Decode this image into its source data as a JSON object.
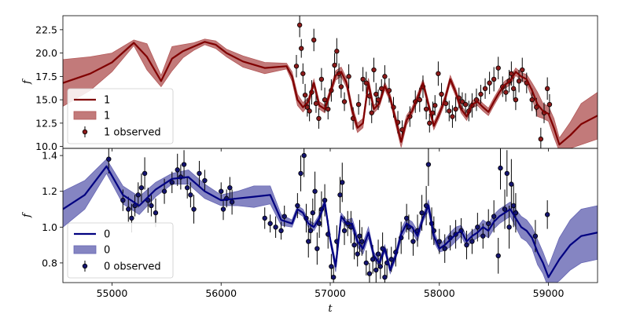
{
  "chart_data": [
    {
      "type": "line",
      "xlabel": "",
      "ylabel": "f",
      "xlim": [
        54550,
        59450
      ],
      "ylim": [
        9.8,
        24.0
      ],
      "yticks": [
        "10.0",
        "12.5",
        "15.0",
        "17.5",
        "20.0",
        "22.5"
      ],
      "ytick_values": [
        10.0,
        12.5,
        15.0,
        17.5,
        20.0,
        22.5
      ],
      "colors": {
        "line": "#800000",
        "band": "#b35959",
        "marker": "#8b1a1a"
      },
      "legend": {
        "placement": "lower-left",
        "entries": [
          "1",
          "1",
          "1 observed"
        ]
      },
      "series": [
        {
          "name": "1",
          "kind": "mean",
          "x": [
            54550,
            54800,
            55000,
            55200,
            55320,
            55450,
            55550,
            55650,
            55750,
            55850,
            55950,
            56050,
            56200,
            56400,
            56600,
            56650,
            56700,
            56750,
            56800,
            56850,
            56900,
            56950,
            57000,
            57050,
            57100,
            57150,
            57200,
            57250,
            57300,
            57350,
            57400,
            57450,
            57500,
            57550,
            57600,
            57650,
            57700,
            57750,
            57800,
            57850,
            57900,
            57950,
            58000,
            58050,
            58100,
            58150,
            58200,
            58250,
            58300,
            58350,
            58400,
            58450,
            58500,
            58550,
            58600,
            58650,
            58700,
            58750,
            58800,
            58850,
            58900,
            58950,
            59000,
            59050,
            59100,
            59200,
            59300,
            59450
          ],
          "y": [
            16.8,
            17.8,
            19.0,
            21.1,
            19.6,
            17.0,
            19.4,
            20.2,
            20.7,
            21.2,
            20.9,
            20.0,
            19.1,
            18.4,
            18.6,
            17.5,
            15.0,
            14.2,
            14.8,
            16.8,
            14.4,
            14.0,
            15.8,
            17.6,
            18.0,
            16.8,
            13.9,
            12.0,
            12.5,
            16.8,
            14.0,
            14.6,
            16.5,
            15.2,
            12.8,
            10.5,
            12.8,
            13.8,
            15.2,
            16.8,
            14.5,
            12.2,
            13.5,
            15.0,
            17.2,
            15.8,
            14.0,
            13.2,
            14.5,
            14.8,
            14.2,
            13.7,
            14.8,
            15.8,
            16.6,
            17.0,
            18.0,
            17.5,
            17.2,
            16.0,
            14.5,
            13.8,
            13.5,
            12.0,
            10.2,
            11.2,
            12.4,
            13.3
          ]
        },
        {
          "name": "1",
          "kind": "band",
          "half_width": [
            2.5,
            1.8,
            1.0,
            0.3,
            1.4,
            0.6,
            1.3,
            0.7,
            0.4,
            0.3,
            0.4,
            0.4,
            0.6,
            0.6,
            0.3,
            0.5,
            0.6,
            0.5,
            0.4,
            0.4,
            0.4,
            0.4,
            0.4,
            0.5,
            0.5,
            0.5,
            0.5,
            0.5,
            0.5,
            0.5,
            0.4,
            0.4,
            0.4,
            0.4,
            0.5,
            0.6,
            0.5,
            0.4,
            0.4,
            0.4,
            0.4,
            0.4,
            0.4,
            0.4,
            0.4,
            0.4,
            0.4,
            0.4,
            0.4,
            0.4,
            0.4,
            0.4,
            0.4,
            0.4,
            0.4,
            0.4,
            0.4,
            0.4,
            0.5,
            0.8,
            1.3,
            0.8,
            0.8,
            1.0,
            0.7,
            1.4,
            2.2,
            2.5
          ]
        },
        {
          "name": "1 observed",
          "kind": "points",
          "x": [
            56690,
            56720,
            56735,
            56750,
            56770,
            56790,
            56810,
            56830,
            56850,
            56870,
            56895,
            56920,
            56950,
            56980,
            57010,
            57040,
            57060,
            57080,
            57100,
            57130,
            57170,
            57210,
            57260,
            57300,
            57330,
            57360,
            57380,
            57400,
            57420,
            57440,
            57470,
            57500,
            57540,
            57580,
            57620,
            57660,
            57730,
            57780,
            57820,
            57850,
            57880,
            57910,
            57940,
            57960,
            57990,
            58020,
            58060,
            58090,
            58120,
            58150,
            58180,
            58210,
            58240,
            58270,
            58300,
            58340,
            58380,
            58420,
            58460,
            58500,
            58540,
            58580,
            58610,
            58640,
            58660,
            58680,
            58700,
            58730,
            58760,
            58800,
            58850,
            58890,
            58930,
            58960,
            58990,
            59010
          ],
          "y": [
            18.6,
            23.0,
            20.5,
            17.8,
            15.5,
            14.2,
            13.8,
            15.8,
            21.4,
            14.6,
            13.0,
            17.2,
            15.0,
            14.0,
            16.0,
            18.7,
            20.2,
            17.8,
            16.4,
            14.8,
            17.5,
            13.0,
            14.5,
            17.2,
            16.8,
            15.4,
            13.6,
            18.2,
            15.6,
            15.0,
            16.2,
            17.5,
            16.0,
            14.2,
            12.6,
            11.8,
            13.2,
            14.8,
            15.0,
            16.4,
            14.0,
            12.5,
            13.6,
            14.4,
            17.8,
            15.6,
            14.6,
            13.8,
            13.2,
            14.0,
            15.2,
            14.8,
            14.5,
            13.8,
            14.4,
            15.0,
            15.6,
            16.2,
            16.8,
            17.2,
            18.4,
            16.4,
            15.8,
            17.0,
            17.8,
            16.2,
            15.0,
            17.0,
            18.2,
            16.8,
            15.0,
            14.2,
            10.8,
            13.6,
            16.2,
            14.5
          ],
          "err": [
            1.2,
            1.3,
            1.0,
            1.1,
            1.2,
            1.0,
            1.1,
            1.3,
            1.2,
            1.0,
            1.1,
            1.2,
            1.3,
            1.1,
            1.2,
            1.3,
            1.4,
            1.1,
            1.2,
            1.0,
            1.3,
            1.2,
            1.1,
            1.3,
            1.2,
            1.0,
            1.1,
            1.3,
            1.2,
            1.1,
            1.0,
            1.2,
            1.3,
            1.1,
            1.2,
            1.0,
            1.1,
            1.2,
            1.3,
            1.2,
            1.1,
            1.0,
            1.2,
            1.1,
            1.3,
            1.2,
            1.0,
            1.1,
            1.2,
            1.3,
            1.1,
            1.0,
            1.2,
            1.1,
            1.3,
            1.2,
            1.0,
            1.1,
            1.2,
            1.3,
            1.2,
            1.1,
            1.0,
            1.2,
            1.3,
            1.2,
            1.1,
            1.2,
            1.3,
            1.1,
            1.2,
            1.0,
            1.2,
            1.1,
            1.2,
            1.1
          ]
        }
      ]
    },
    {
      "type": "line",
      "xlabel": "t",
      "ylabel": "f",
      "xlim": [
        54550,
        59450
      ],
      "ylim": [
        0.69,
        1.44
      ],
      "xticks": [
        "55000",
        "56000",
        "57000",
        "58000",
        "59000"
      ],
      "xtick_values": [
        55000,
        56000,
        57000,
        58000,
        59000
      ],
      "yticks": [
        "0.8",
        "1.0",
        "1.2",
        "1.4"
      ],
      "ytick_values": [
        0.8,
        1.0,
        1.2,
        1.4
      ],
      "colors": {
        "line": "#000080",
        "band": "#6666b3",
        "marker": "#14146e"
      },
      "legend": {
        "placement": "lower-left",
        "entries": [
          "0",
          "0",
          "0 observed"
        ]
      },
      "series": [
        {
          "name": "0",
          "kind": "mean",
          "x": [
            54550,
            54750,
            54950,
            55100,
            55250,
            55400,
            55550,
            55700,
            55850,
            56000,
            56150,
            56300,
            56450,
            56550,
            56650,
            56700,
            56750,
            56800,
            56850,
            56900,
            56950,
            57000,
            57050,
            57100,
            57150,
            57200,
            57250,
            57300,
            57350,
            57400,
            57450,
            57500,
            57550,
            57600,
            57650,
            57700,
            57750,
            57800,
            57850,
            57900,
            57950,
            58000,
            58050,
            58100,
            58150,
            58200,
            58250,
            58300,
            58350,
            58400,
            58450,
            58500,
            58550,
            58600,
            58650,
            58700,
            58750,
            58800,
            58850,
            58900,
            58950,
            59000,
            59100,
            59200,
            59300,
            59450
          ],
          "y": [
            1.1,
            1.18,
            1.34,
            1.18,
            1.12,
            1.21,
            1.27,
            1.28,
            1.2,
            1.15,
            1.16,
            1.17,
            1.18,
            1.04,
            1.02,
            1.1,
            1.08,
            1.02,
            1.0,
            1.05,
            1.14,
            0.93,
            0.78,
            1.06,
            1.02,
            1.02,
            0.92,
            0.88,
            0.97,
            0.84,
            0.8,
            0.88,
            0.76,
            0.84,
            0.96,
            1.02,
            1.0,
            0.95,
            1.05,
            1.12,
            0.95,
            0.88,
            0.9,
            0.93,
            0.96,
            0.98,
            0.92,
            0.95,
            0.97,
            1.0,
            0.98,
            1.03,
            1.06,
            1.08,
            1.1,
            1.05,
            1.0,
            0.98,
            0.94,
            0.86,
            0.8,
            0.72,
            0.82,
            0.9,
            0.95,
            0.97
          ]
        },
        {
          "name": "0",
          "kind": "band",
          "half_width": [
            0.1,
            0.08,
            0.04,
            0.05,
            0.05,
            0.04,
            0.03,
            0.04,
            0.04,
            0.03,
            0.04,
            0.06,
            0.05,
            0.03,
            0.02,
            0.02,
            0.02,
            0.02,
            0.02,
            0.02,
            0.02,
            0.02,
            0.03,
            0.02,
            0.02,
            0.03,
            0.03,
            0.03,
            0.03,
            0.02,
            0.02,
            0.02,
            0.02,
            0.02,
            0.03,
            0.03,
            0.03,
            0.03,
            0.02,
            0.03,
            0.03,
            0.02,
            0.03,
            0.04,
            0.04,
            0.03,
            0.03,
            0.03,
            0.03,
            0.04,
            0.04,
            0.04,
            0.04,
            0.04,
            0.04,
            0.05,
            0.06,
            0.06,
            0.06,
            0.07,
            0.06,
            0.06,
            0.12,
            0.14,
            0.15,
            0.15
          ]
        },
        {
          "name": "0 observed",
          "kind": "points",
          "x": [
            54970,
            55100,
            55150,
            55180,
            55210,
            55240,
            55270,
            55300,
            55330,
            55360,
            55400,
            55480,
            55550,
            55600,
            55630,
            55660,
            55690,
            55720,
            55750,
            55800,
            55850,
            56000,
            56020,
            56050,
            56080,
            56100,
            56400,
            56450,
            56500,
            56550,
            56580,
            56700,
            56730,
            56760,
            56780,
            56800,
            56820,
            56840,
            56860,
            56880,
            56900,
            56920,
            56950,
            56980,
            57010,
            57030,
            57060,
            57090,
            57110,
            57130,
            57160,
            57190,
            57220,
            57250,
            57270,
            57290,
            57330,
            57360,
            57390,
            57420,
            57440,
            57460,
            57480,
            57500,
            57520,
            57560,
            57600,
            57650,
            57700,
            57720,
            57760,
            57800,
            57840,
            57880,
            57900,
            57930,
            57950,
            58000,
            58050,
            58100,
            58150,
            58200,
            58250,
            58300,
            58350,
            58400,
            58450,
            58500,
            58540,
            58560,
            58600,
            58620,
            58640,
            58660,
            58680,
            58700,
            58880,
            58990
          ],
          "y": [
            1.38,
            1.15,
            1.1,
            1.05,
            1.12,
            1.18,
            1.22,
            1.3,
            1.15,
            1.12,
            1.08,
            1.2,
            1.25,
            1.32,
            1.28,
            1.35,
            1.22,
            1.18,
            1.1,
            1.3,
            1.26,
            1.2,
            1.1,
            1.16,
            1.22,
            1.14,
            1.05,
            1.02,
            1.0,
            0.98,
            1.06,
            1.12,
            1.3,
            1.4,
            1.05,
            0.92,
            0.98,
            1.08,
            1.2,
            0.88,
            1.02,
            1.1,
            1.15,
            0.96,
            0.78,
            0.72,
            0.92,
            1.18,
            1.25,
            0.98,
            1.02,
            1.0,
            0.9,
            0.85,
            0.95,
            0.92,
            0.8,
            0.74,
            0.82,
            0.76,
            0.85,
            0.78,
            0.88,
            0.72,
            0.8,
            0.82,
            0.86,
            0.94,
            1.05,
            1.0,
            0.92,
            0.98,
            1.08,
            1.12,
            1.35,
            1.02,
            0.98,
            0.92,
            0.88,
            0.94,
            0.96,
            0.98,
            0.9,
            0.92,
            1.0,
            0.95,
            1.02,
            1.06,
            0.84,
            1.33,
            1.1,
            1.3,
            1.0,
            1.24,
            1.12,
            1.08,
            0.95,
            1.07
          ],
          "err": [
            0.08,
            0.06,
            0.07,
            0.08,
            0.06,
            0.07,
            0.08,
            0.09,
            0.07,
            0.06,
            0.08,
            0.07,
            0.06,
            0.09,
            0.07,
            0.08,
            0.06,
            0.07,
            0.08,
            0.07,
            0.06,
            0.05,
            0.06,
            0.05,
            0.06,
            0.07,
            0.06,
            0.05,
            0.06,
            0.05,
            0.06,
            0.07,
            0.1,
            0.12,
            0.08,
            0.09,
            0.07,
            0.08,
            0.11,
            0.09,
            0.08,
            0.1,
            0.09,
            0.08,
            0.07,
            0.06,
            0.09,
            0.1,
            0.11,
            0.08,
            0.07,
            0.09,
            0.08,
            0.07,
            0.09,
            0.08,
            0.07,
            0.06,
            0.08,
            0.07,
            0.08,
            0.07,
            0.09,
            0.07,
            0.08,
            0.07,
            0.08,
            0.09,
            0.08,
            0.07,
            0.08,
            0.09,
            0.1,
            0.11,
            0.12,
            0.09,
            0.08,
            0.07,
            0.08,
            0.07,
            0.08,
            0.07,
            0.08,
            0.07,
            0.08,
            0.07,
            0.08,
            0.09,
            0.1,
            0.12,
            0.11,
            0.13,
            0.12,
            0.14,
            0.12,
            0.11,
            0.09,
            0.08
          ]
        }
      ]
    }
  ]
}
